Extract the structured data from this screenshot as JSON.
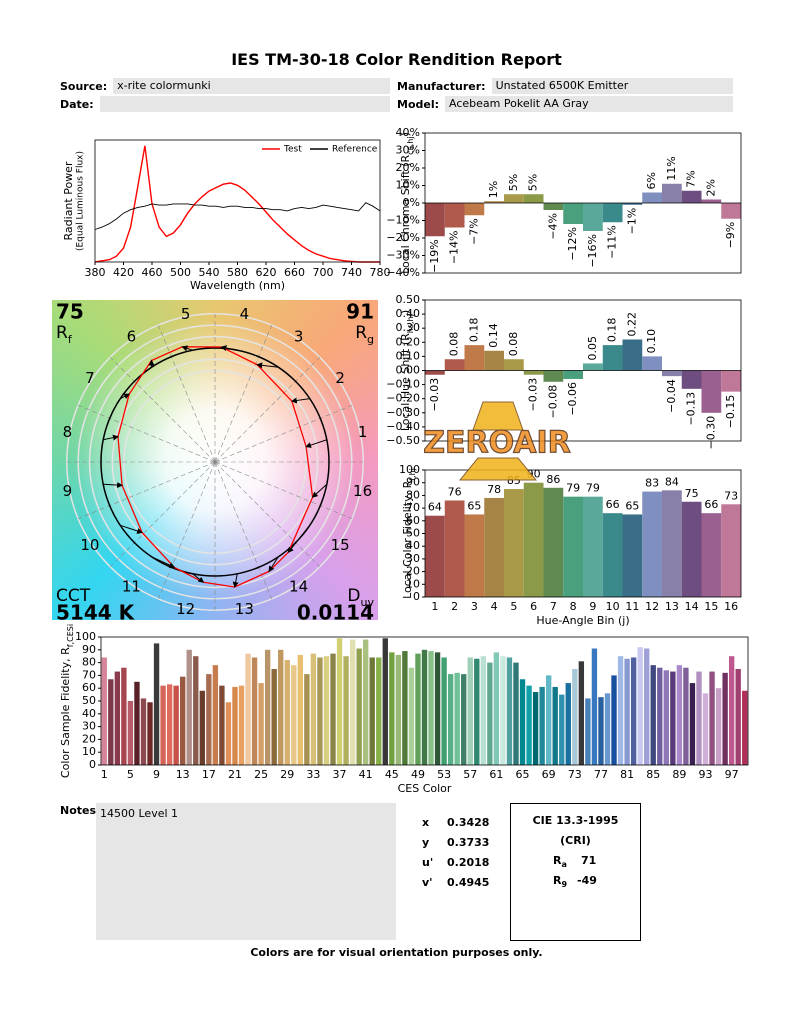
{
  "header": {
    "title": "IES TM-30-18 Color Rendition Report",
    "fields": [
      {
        "label": "Source:",
        "value": "x-rite colormunki"
      },
      {
        "label": "Manufacturer:",
        "value": "Unstated 6500K Emitter"
      },
      {
        "label": "Date:"
      },
      {
        "label": "Model:",
        "value": "Acebeam Pokelit AA Gray"
      }
    ]
  },
  "chart_data": [
    {
      "type": "line",
      "xlabel": "Wavelength (nm)",
      "ylabel": "Radiant Power",
      "ylabel_note": "(Equal Luminous Flux)",
      "x": [
        380,
        390,
        400,
        410,
        420,
        430,
        440,
        450,
        460,
        470,
        480,
        490,
        500,
        510,
        520,
        530,
        540,
        550,
        560,
        570,
        580,
        590,
        600,
        610,
        620,
        630,
        640,
        650,
        660,
        670,
        680,
        690,
        700,
        710,
        720,
        730,
        740,
        750,
        760,
        770,
        780
      ],
      "series": [
        {
          "name": "Test",
          "color": "#ff0000",
          "values": [
            0,
            0.01,
            0.02,
            0.05,
            0.12,
            0.3,
            0.65,
            1.0,
            0.5,
            0.3,
            0.22,
            0.25,
            0.32,
            0.42,
            0.5,
            0.56,
            0.61,
            0.64,
            0.67,
            0.68,
            0.66,
            0.62,
            0.56,
            0.5,
            0.43,
            0.36,
            0.3,
            0.24,
            0.19,
            0.14,
            0.1,
            0.07,
            0.05,
            0.03,
            0.02,
            0.01,
            0.005,
            0,
            0,
            0,
            0
          ]
        },
        {
          "name": "Reference",
          "color": "#000000",
          "values": [
            0.28,
            0.3,
            0.33,
            0.37,
            0.42,
            0.45,
            0.47,
            0.48,
            0.5,
            0.49,
            0.49,
            0.5,
            0.5,
            0.5,
            0.49,
            0.49,
            0.48,
            0.48,
            0.47,
            0.48,
            0.48,
            0.47,
            0.47,
            0.46,
            0.46,
            0.45,
            0.45,
            0.44,
            0.46,
            0.47,
            0.46,
            0.47,
            0.49,
            0.48,
            0.47,
            0.46,
            0.45,
            0.44,
            0.51,
            0.48,
            0.44
          ]
        }
      ],
      "xlim": [
        380,
        780
      ],
      "xticks": [
        380,
        420,
        460,
        500,
        540,
        580,
        620,
        660,
        700,
        740,
        780
      ],
      "ylim": [
        0,
        1.05
      ],
      "legend": "upper right"
    },
    {
      "type": "bar",
      "ylabel": [
        "Local Chroma Shift (R",
        "cs,hj",
        ")"
      ],
      "values": [
        -19,
        -14,
        -7,
        1,
        5,
        5,
        -4,
        -12,
        -16,
        -11,
        -1,
        6,
        11,
        7,
        2,
        -9
      ],
      "value_labels": [
        "−19%",
        "−14%",
        "−7%",
        "1%",
        "5%",
        "5%",
        "−4%",
        "−12%",
        "−16%",
        "−11%",
        "−1%",
        "6%",
        "11%",
        "7%",
        "2%",
        "−9%"
      ],
      "colors": [
        "#9c4a4a",
        "#b05a4e",
        "#c07a4a",
        "#a68446",
        "#a89a48",
        "#8a9a48",
        "#5f8a52",
        "#4aa07c",
        "#5aa89a",
        "#3a8a8c",
        "#3a6e88",
        "#7f90c0",
        "#8880a8",
        "#6e4e80",
        "#9a6090",
        "#c07898"
      ],
      "ylim": [
        -40,
        40
      ],
      "yticks": [
        {
          "value": -40,
          "label": "−40%"
        },
        {
          "value": -30,
          "label": "−30%"
        },
        {
          "value": -20,
          "label": "−20%"
        },
        {
          "value": -10,
          "label": "−10%"
        },
        {
          "value": 0,
          "label": "0%"
        },
        {
          "value": 10,
          "label": "10%"
        },
        {
          "value": 20,
          "label": "20%"
        },
        {
          "value": 30,
          "label": "30%"
        },
        {
          "value": 40,
          "label": "40%"
        }
      ],
      "data_label_rotation": 90
    },
    {
      "type": "bar",
      "ylabel": [
        "Local Hue Shift (R",
        "hs,hj",
        ")"
      ],
      "values": [
        -0.03,
        0.08,
        0.18,
        0.14,
        0.08,
        -0.03,
        -0.08,
        -0.06,
        0.05,
        0.18,
        0.22,
        0.1,
        -0.04,
        -0.13,
        -0.3,
        -0.15
      ],
      "value_labels": [
        "−0.03",
        "0.08",
        "0.18",
        "0.14",
        "0.08",
        "−0.03",
        "−0.08",
        "−0.06",
        "0.05",
        "0.18",
        "0.22",
        "0.10",
        "−0.04",
        "−0.13",
        "−0.30",
        "−0.15"
      ],
      "colors": [
        "#9c4a4a",
        "#b05a4e",
        "#c07a4a",
        "#a68446",
        "#a89a48",
        "#8a9a48",
        "#5f8a52",
        "#4aa07c",
        "#5aa89a",
        "#3a8a8c",
        "#3a6e88",
        "#7f90c0",
        "#8880a8",
        "#6e4e80",
        "#9a6090",
        "#c07898"
      ],
      "ylim": [
        -0.5,
        0.5
      ],
      "yticks": [
        {
          "value": -0.5,
          "label": "−0.50"
        },
        {
          "value": -0.4,
          "label": "−0.40"
        },
        {
          "value": -0.3,
          "label": "−0.30"
        },
        {
          "value": -0.2,
          "label": "−0.20"
        },
        {
          "value": -0.1,
          "label": "−0.10"
        },
        {
          "value": 0,
          "label": "0.00"
        },
        {
          "value": 0.1,
          "label": "0.10"
        },
        {
          "value": 0.2,
          "label": "0.20"
        },
        {
          "value": 0.3,
          "label": "0.30"
        },
        {
          "value": 0.4,
          "label": "0.40"
        },
        {
          "value": 0.5,
          "label": "0.50"
        }
      ],
      "data_label_rotation": 90
    },
    {
      "type": "bar",
      "ylabel": [
        "Local Color Fidelity, R",
        "f,hj"
      ],
      "xlabel": "Hue-Angle Bin (j)",
      "categories": [
        "1",
        "2",
        "3",
        "4",
        "5",
        "6",
        "7",
        "8",
        "9",
        "10",
        "11",
        "12",
        "13",
        "14",
        "15",
        "16"
      ],
      "values": [
        64,
        76,
        65,
        78,
        85,
        90,
        86,
        79,
        79,
        66,
        65,
        83,
        84,
        75,
        66,
        73
      ],
      "data_labels": true,
      "colors": [
        "#9c4a4a",
        "#b05a4e",
        "#c07a4a",
        "#a68446",
        "#a89a48",
        "#8a9a48",
        "#5f8a52",
        "#4aa07c",
        "#5aa89a",
        "#3a8a8c",
        "#3a6e88",
        "#7f90c0",
        "#8880a8",
        "#6e4e80",
        "#9a6090",
        "#c07898"
      ],
      "ylim": [
        0,
        100
      ],
      "yticks": [
        0,
        10,
        20,
        30,
        40,
        50,
        60,
        70,
        80,
        90,
        100
      ]
    },
    {
      "type": "bar",
      "ylabel": [
        "Color Sample Fidelity, R",
        "f,CESi"
      ],
      "xlabel": "CES Color",
      "categories": [
        "1",
        null,
        null,
        null,
        "5",
        null,
        null,
        null,
        "9",
        null,
        null,
        null,
        "13",
        null,
        null,
        null,
        "17",
        null,
        null,
        null,
        "21",
        null,
        null,
        null,
        "25",
        null,
        null,
        null,
        "29",
        null,
        null,
        null,
        "33",
        null,
        null,
        null,
        "37",
        null,
        null,
        null,
        "41",
        null,
        null,
        null,
        "45",
        null,
        null,
        null,
        "49",
        null,
        null,
        null,
        "53",
        null,
        null,
        null,
        "57",
        null,
        null,
        null,
        "61",
        null,
        null,
        null,
        "65",
        null,
        null,
        null,
        "69",
        null,
        null,
        null,
        "73",
        null,
        null,
        null,
        "77",
        null,
        null,
        null,
        "81",
        null,
        null,
        null,
        "85",
        null,
        null,
        null,
        "89",
        null,
        null,
        null,
        "93",
        null,
        null,
        null,
        "97",
        null,
        null
      ],
      "values": [
        84,
        67,
        73,
        76,
        50,
        65,
        52,
        49,
        95,
        62,
        63,
        62,
        69,
        90,
        85,
        58,
        71,
        78,
        62,
        49,
        61,
        62,
        87,
        84,
        64,
        90,
        75,
        90,
        82,
        78,
        86,
        71,
        87,
        84,
        85,
        87,
        99,
        85,
        98,
        91,
        98,
        84,
        84,
        99,
        88,
        86,
        89,
        76,
        87,
        90,
        89,
        88,
        84,
        71,
        72,
        71,
        84,
        83,
        85,
        80,
        88,
        85,
        84,
        80,
        67,
        62,
        57,
        61,
        70,
        61,
        55,
        64,
        75,
        81,
        52,
        91,
        53,
        56,
        70,
        85,
        83,
        84,
        92,
        91,
        78,
        76,
        74,
        73,
        78,
        76,
        64,
        73,
        56,
        73,
        60,
        72,
        85,
        75,
        58
      ],
      "colors": [
        "#d6849a",
        "#7a3848",
        "#8a3a4c",
        "#a84650",
        "#b85c6c",
        "#5a2028",
        "#8a4a50",
        "#6e2828",
        "#3a3a3a",
        "#d46458",
        "#e06a5c",
        "#c85048",
        "#9a5840",
        "#b09088",
        "#8a5a4c",
        "#6a3c2c",
        "#a86c50",
        "#c67c4c",
        "#7e4a34",
        "#e09058",
        "#d8884a",
        "#e8a060",
        "#f0c8a0",
        "#c08858",
        "#d4a068",
        "#b89468",
        "#8a6a3c",
        "#c09860",
        "#d8b070",
        "#e8c888",
        "#e8c070",
        "#a89050",
        "#d8c078",
        "#a89858",
        "#d8d080",
        "#8a8448",
        "#d0d070",
        "#b0b060",
        "#e0e0b0",
        "#90a050",
        "#a8c080",
        "#707838",
        "#88b048",
        "#383838",
        "#70a040",
        "#98b878",
        "#507838",
        "#a8d098",
        "#60a058",
        "#407848",
        "#88c088",
        "#305838",
        "#40a070",
        "#58b088",
        "#70c098",
        "#408068",
        "#a0d0b8",
        "#308870",
        "#b8e0d0",
        "#60a890",
        "#80c8b8",
        "#c8e8e0",
        "#50a0a0",
        "#307878",
        "#008890",
        "#10a0a8",
        "#006870",
        "#208898",
        "#60b8c8",
        "#107888",
        "#3090b0",
        "#1870a0",
        "#a8c8d8",
        "#383838",
        "#4880b8",
        "#3878c0",
        "#2860a0",
        "#6898d0",
        "#1850a0",
        "#a0b8e8",
        "#8898d0",
        "#5060a0",
        "#c8c8f0",
        "#a0a0d8",
        "#404880",
        "#7060a0",
        "#9078b8",
        "#5a3a7a",
        "#a888c8",
        "#806098",
        "#382050",
        "#b090c0",
        "#d0b0d8",
        "#905080",
        "#c8a0c8",
        "#703060",
        "#c05890",
        "#a04070",
        "#b0305a"
      ],
      "ylim": [
        0,
        100
      ],
      "yticks": [
        0,
        10,
        20,
        30,
        40,
        50,
        60,
        70,
        80,
        90,
        100
      ]
    },
    {
      "type": "polar",
      "bin_labels": [
        "1",
        "2",
        "3",
        "4",
        "5",
        "6",
        "7",
        "8",
        "9",
        "10",
        "11",
        "12",
        "13",
        "14",
        "15",
        "16"
      ],
      "rf": 75,
      "rf_symbol": "R",
      "rf_sub": "f",
      "rg": 91,
      "rg_symbol": "R",
      "rg_sub": "g",
      "cct_label": "CCT",
      "cct": "5144 K",
      "duv_symbol": "D",
      "duv_sub": "uv",
      "duv": 0.0114,
      "test_color": "#ff0000",
      "reference_color": "#000000"
    }
  ],
  "notes": {
    "label": "Notes:",
    "text": "14500 Level 1"
  },
  "chromaticity": [
    {
      "label": "x",
      "value": 0.3428
    },
    {
      "label": "y",
      "value": 0.3733
    },
    {
      "label": "u'",
      "value": 0.2018
    },
    {
      "label": "v'",
      "value": 0.4945
    }
  ],
  "cri": {
    "title": "CIE 13.3-1995",
    "subtitle": "(CRI)",
    "items": [
      {
        "symbol": "R",
        "sub": "a",
        "value": 71
      },
      {
        "symbol": "R",
        "sub": "9",
        "value": -49
      }
    ]
  },
  "footer": "Colors are for visual orientation purposes only.",
  "watermark": "ZEROAIR"
}
